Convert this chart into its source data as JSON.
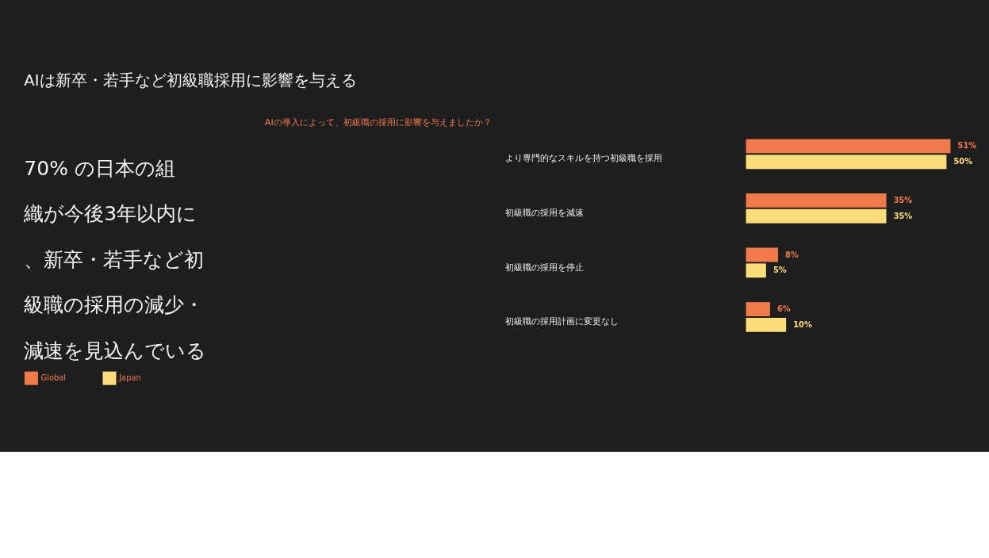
{
  "chart_data": {
    "type": "bar",
    "orientation": "horizontal",
    "title": "AIは新卒・若手など初級職採用に影響を与える",
    "subtitle": "AIの導入によって、初級職の採用に影響を与えましたか？",
    "annotations": [
      "70% の日本の組織が今後3年以内に、新卒・若手など初級職の採用の減少・減速を見込んでいる"
    ],
    "categories": [
      "より専門的なスキルを持つ初級職を採用",
      "初級職の採用を減速",
      "初級職の採用を停止",
      "初級職の採用計画に変更なし"
    ],
    "series": [
      {
        "name": "Global",
        "color": "#f07a4a",
        "values": [
          51,
          35,
          8,
          6
        ],
        "value_labels": [
          "51%",
          "35%",
          "8%",
          "6%"
        ]
      },
      {
        "name": "Japan",
        "color": "#fedc7a",
        "values": [
          50,
          35,
          5,
          10
        ],
        "value_labels": [
          "50%",
          "35%",
          "5%",
          "10%"
        ]
      }
    ],
    "legend": "bottom",
    "tick_labels": "y"
  }
}
